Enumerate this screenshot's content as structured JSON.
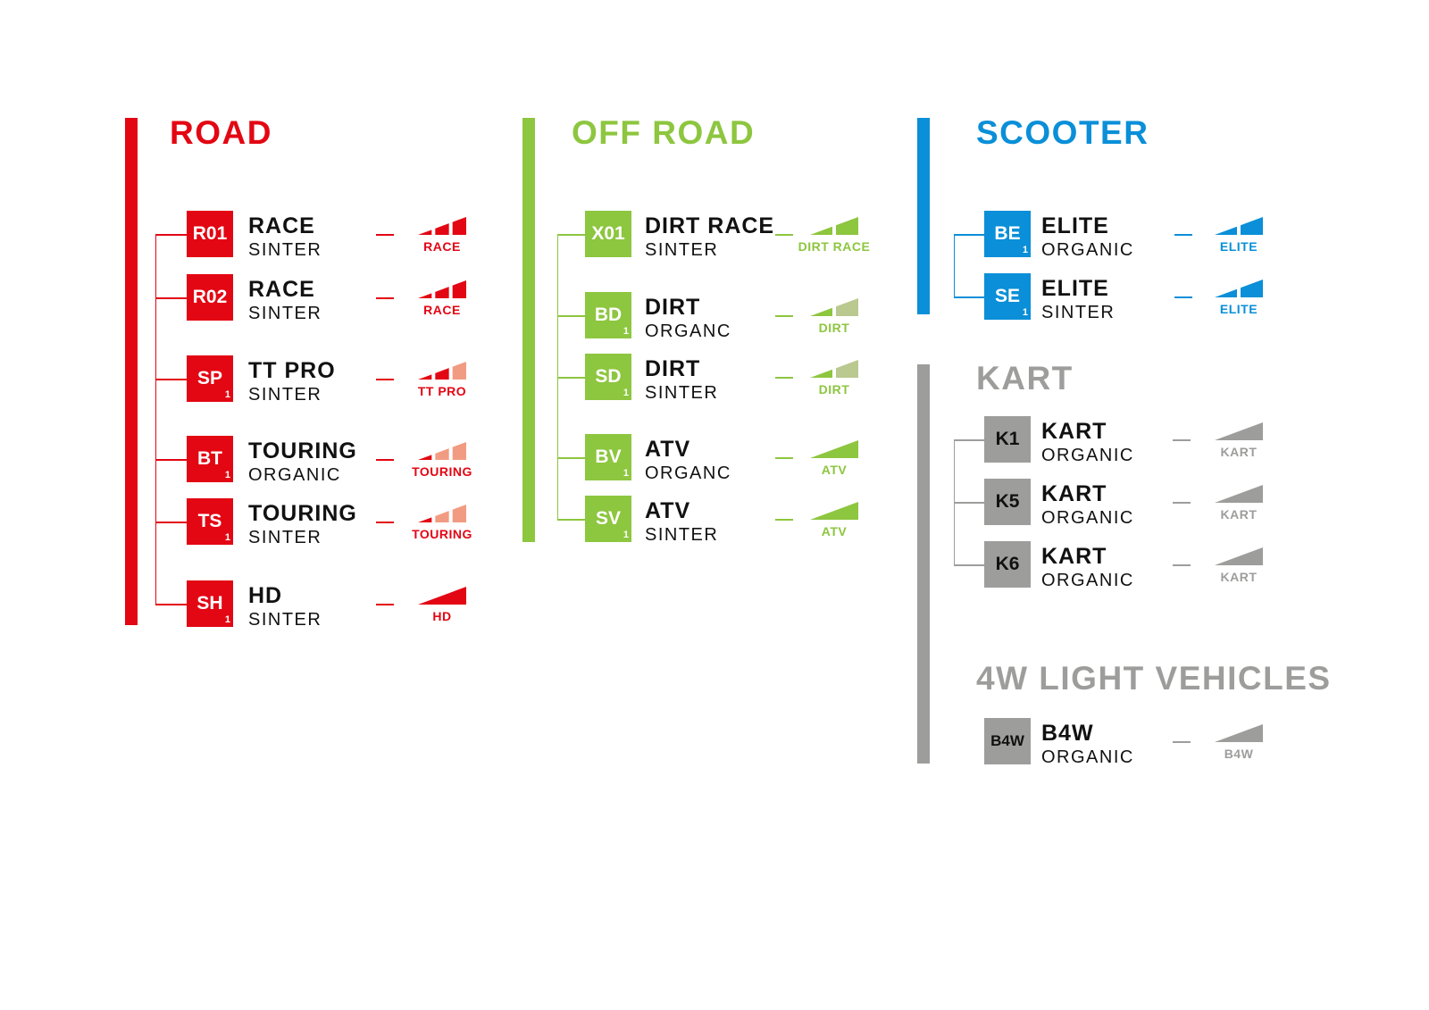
{
  "sections": [
    {
      "title": "ROAD",
      "color": "#e30613",
      "light": "#f19c82",
      "items": [
        {
          "code": "R01",
          "sub": "",
          "name": "RACE",
          "material": "SINTER",
          "gauge_label": "RACE",
          "levels": [
            "full",
            "full",
            "full"
          ]
        },
        {
          "code": "R02",
          "sub": "",
          "name": "RACE",
          "material": "SINTER",
          "gauge_label": "RACE",
          "levels": [
            "full",
            "full",
            "full"
          ]
        },
        {
          "code": "SP",
          "sub": "1",
          "name": "TT PRO",
          "material": "SINTER",
          "gauge_label": "TT PRO",
          "levels": [
            "full",
            "full",
            "light"
          ]
        },
        {
          "code": "BT",
          "sub": "1",
          "name": "TOURING",
          "material": "ORGANIC",
          "gauge_label": "TOURING",
          "levels": [
            "full",
            "light",
            "light"
          ]
        },
        {
          "code": "TS",
          "sub": "1",
          "name": "TOURING",
          "material": "SINTER",
          "gauge_label": "TOURING",
          "levels": [
            "full",
            "light",
            "light"
          ]
        },
        {
          "code": "SH",
          "sub": "1",
          "name": "HD",
          "material": "SINTER",
          "gauge_label": "HD",
          "levels": [
            "full"
          ]
        }
      ]
    },
    {
      "title": "OFF ROAD",
      "color": "#8dc63f",
      "light": "#b9c98f",
      "items": [
        {
          "code": "X01",
          "sub": "",
          "name": "DIRT RACE",
          "material": "SINTER",
          "gauge_label": "DIRT RACE",
          "levels": [
            "full",
            "full"
          ]
        },
        {
          "code": "BD",
          "sub": "1",
          "name": "DIRT",
          "material": "ORGANC",
          "gauge_label": "DIRT",
          "levels": [
            "full",
            "light"
          ]
        },
        {
          "code": "SD",
          "sub": "1",
          "name": "DIRT",
          "material": "SINTER",
          "gauge_label": "DIRT",
          "levels": [
            "full",
            "light"
          ]
        },
        {
          "code": "BV",
          "sub": "1",
          "name": "ATV",
          "material": "ORGANC",
          "gauge_label": "ATV",
          "levels": [
            "full"
          ]
        },
        {
          "code": "SV",
          "sub": "1",
          "name": "ATV",
          "material": "SINTER",
          "gauge_label": "ATV",
          "levels": [
            "full"
          ]
        }
      ]
    },
    {
      "title": "SCOOTER",
      "color": "#0a8fd8",
      "light": "#8cc9ee",
      "items": [
        {
          "code": "BE",
          "sub": "1",
          "name": "ELITE",
          "material": "ORGANIC",
          "gauge_label": "ELITE",
          "levels": [
            "full",
            "full"
          ]
        },
        {
          "code": "SE",
          "sub": "1",
          "name": "ELITE",
          "material": "SINTER",
          "gauge_label": "ELITE",
          "levels": [
            "full",
            "full"
          ]
        }
      ]
    },
    {
      "title": "KART",
      "color": "#9d9d9c",
      "light": "#cfcfcf",
      "items": [
        {
          "code": "K1",
          "sub": "",
          "name": "KART",
          "material": "ORGANIC",
          "gauge_label": "KART",
          "levels": [
            "full"
          ]
        },
        {
          "code": "K5",
          "sub": "",
          "name": "KART",
          "material": "ORGANIC",
          "gauge_label": "KART",
          "levels": [
            "full"
          ]
        },
        {
          "code": "K6",
          "sub": "",
          "name": "KART",
          "material": "ORGANIC",
          "gauge_label": "KART",
          "levels": [
            "full"
          ]
        }
      ]
    },
    {
      "title": "4W LIGHT VEHICLES",
      "color": "#9d9d9c",
      "light": "#cfcfcf",
      "items": [
        {
          "code": "B4W",
          "sub": "",
          "name": "B4W",
          "material": "ORGANIC",
          "gauge_label": "B4W",
          "levels": [
            "full"
          ]
        }
      ]
    }
  ]
}
